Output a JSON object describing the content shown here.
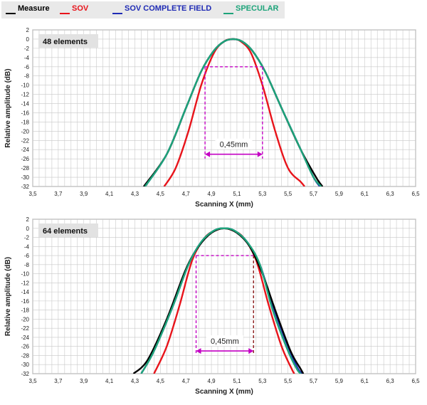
{
  "legend": [
    {
      "name": "Measure",
      "color": "#000000"
    },
    {
      "name": "SOV",
      "color": "#e8141b"
    },
    {
      "name": "SOV COMPLETE FIELD",
      "color": "#1f2bb5"
    },
    {
      "name": "SPECULAR",
      "color": "#1da47a"
    }
  ],
  "chart_data": [
    {
      "type": "line",
      "panel_label": "48 elements",
      "xlabel": "Scanning X (mm)",
      "ylabel": "Relative amplitude (dB)",
      "xlim": [
        3.5,
        6.5
      ],
      "ylim": [
        -32,
        2
      ],
      "x_ticks": [
        "3,5",
        "3,7",
        "3,9",
        "4,1",
        "4,3",
        "4,5",
        "4,7",
        "4,9",
        "5,1",
        "5,3",
        "5,5",
        "5,7",
        "5,9",
        "6,1",
        "6,3",
        "6,5"
      ],
      "y_ticks": [
        "2",
        "0",
        "-2",
        "-4",
        "-6",
        "-8",
        "-10",
        "-12",
        "-14",
        "-16",
        "-18",
        "-20",
        "-22",
        "-24",
        "-26",
        "-28",
        "-30",
        "-32"
      ],
      "grid": true,
      "series": [
        {
          "name": "Measure",
          "color": "#000000",
          "x": [
            4.37,
            4.55,
            4.7,
            4.82,
            4.92,
            5.0,
            5.07,
            5.14,
            5.22,
            5.32,
            5.45,
            5.6,
            5.72,
            5.77
          ],
          "y": [
            -32,
            -25,
            -15,
            -7,
            -2.5,
            -0.5,
            0,
            -0.5,
            -2.5,
            -7,
            -15,
            -24,
            -30,
            -32
          ]
        },
        {
          "name": "SOV",
          "color": "#e8141b",
          "x": [
            4.53,
            4.62,
            4.72,
            4.82,
            4.92,
            5.0,
            5.07,
            5.13,
            5.21,
            5.3,
            5.4,
            5.5,
            5.6,
            5.63
          ],
          "y": [
            -32,
            -28,
            -20,
            -10,
            -3,
            -0.5,
            0,
            -0.5,
            -3,
            -10,
            -20,
            -28,
            -31,
            -32
          ]
        },
        {
          "name": "SOV COMPLETE FIELD",
          "color": "#1f2bb5",
          "x": [
            4.38,
            4.55,
            4.7,
            4.82,
            4.92,
            5.0,
            5.07,
            5.14,
            5.22,
            5.32,
            5.45,
            5.6,
            5.7,
            5.75
          ],
          "y": [
            -32,
            -25,
            -15,
            -7,
            -2.5,
            -0.5,
            0,
            -0.5,
            -2.5,
            -7,
            -15,
            -24,
            -30,
            -32
          ]
        },
        {
          "name": "SPECULAR",
          "color": "#1da47a",
          "x": [
            4.38,
            4.55,
            4.7,
            4.82,
            4.92,
            5.0,
            5.07,
            5.14,
            5.22,
            5.32,
            5.45,
            5.6,
            5.7,
            5.76
          ],
          "y": [
            -32,
            -25,
            -15,
            -7,
            -2.5,
            -0.5,
            0,
            -0.5,
            -2.5,
            -7,
            -15,
            -24,
            -30,
            -32
          ]
        }
      ],
      "annotation": {
        "label": "0,45mm",
        "level_db": -6,
        "x_left": 4.85,
        "x_right": 5.3,
        "arrow_y_db": -25,
        "line_color": "#c400c4"
      }
    },
    {
      "type": "line",
      "panel_label": "64 elements",
      "xlabel": "Scanning X (mm)",
      "ylabel": "Relative amplitude (dB)",
      "xlim": [
        3.5,
        6.5
      ],
      "ylim": [
        -32,
        2
      ],
      "x_ticks": [
        "3,5",
        "3,7",
        "3,9",
        "4,1",
        "4,3",
        "4,5",
        "4,7",
        "4,9",
        "5,1",
        "5,3",
        "5,5",
        "5,7",
        "5,9",
        "6,1",
        "6,3",
        "6,5"
      ],
      "y_ticks": [
        "2",
        "0",
        "-2",
        "-4",
        "-6",
        "-8",
        "-10",
        "-12",
        "-14",
        "-16",
        "-18",
        "-20",
        "-22",
        "-24",
        "-26",
        "-28",
        "-30",
        "-32"
      ],
      "grid": true,
      "series": [
        {
          "name": "Measure",
          "color": "#000000",
          "x": [
            4.29,
            4.4,
            4.55,
            4.7,
            4.8,
            4.9,
            5.0,
            5.1,
            5.2,
            5.3,
            5.4,
            5.52,
            5.6,
            5.62
          ],
          "y": [
            -32,
            -29,
            -20,
            -9,
            -4,
            -1,
            0,
            -1,
            -4,
            -10,
            -18,
            -27,
            -31,
            -32
          ]
        },
        {
          "name": "SOV",
          "color": "#e8141b",
          "x": [
            4.45,
            4.55,
            4.65,
            4.75,
            4.85,
            4.93,
            5.0,
            5.07,
            5.15,
            5.25,
            5.35,
            5.45,
            5.53,
            5.55
          ],
          "y": [
            -32,
            -26,
            -17,
            -7,
            -2,
            -0.5,
            0,
            -0.5,
            -2,
            -7,
            -17,
            -26,
            -31,
            -32
          ]
        },
        {
          "name": "SOV COMPLETE FIELD",
          "color": "#1f2bb5",
          "x": [
            4.35,
            4.45,
            4.6,
            4.72,
            4.82,
            4.92,
            5.0,
            5.08,
            5.18,
            5.28,
            5.38,
            5.5,
            5.58,
            5.62
          ],
          "y": [
            -32,
            -27,
            -17,
            -8,
            -3,
            -0.5,
            0,
            -0.5,
            -3,
            -8,
            -17,
            -26,
            -31,
            -32
          ]
        },
        {
          "name": "SPECULAR",
          "color": "#1da47a",
          "x": [
            4.35,
            4.45,
            4.6,
            4.72,
            4.82,
            4.92,
            5.0,
            5.08,
            5.18,
            5.28,
            5.38,
            5.5,
            5.57,
            5.6
          ],
          "y": [
            -32,
            -27,
            -17,
            -8,
            -3,
            -0.5,
            0,
            -0.5,
            -3,
            -8,
            -18,
            -27,
            -31,
            -32
          ]
        }
      ],
      "annotation": {
        "label": "0,45mm",
        "level_db": -6,
        "x_left": 4.78,
        "x_right": 5.23,
        "arrow_y_db": -27,
        "line_color": "#c400c4",
        "right_line_color": "#8b1a1a"
      }
    }
  ]
}
